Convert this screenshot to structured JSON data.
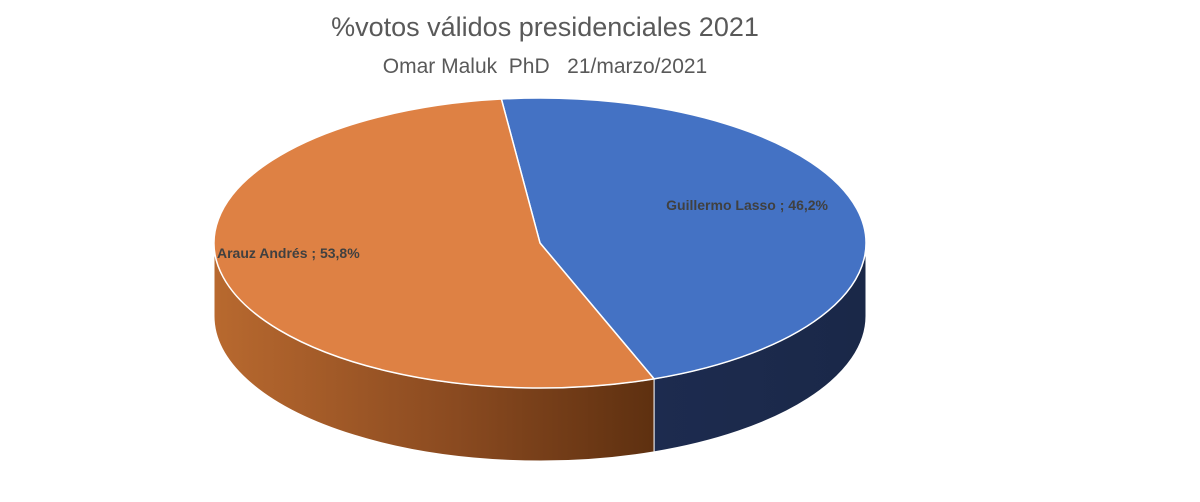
{
  "chart_data": {
    "type": "pie",
    "title": "%votos válidos presidenciales  2021",
    "subtitle": "Omar Maluk  PhD   21/marzo/2021",
    "slices": [
      {
        "name": "Guillermo Lasso",
        "value": 46.2,
        "label": "Guillermo Lasso ; 46,2%",
        "color": "#4472c4",
        "side_color": "#1f2f55"
      },
      {
        "name": "Arauz Andrés",
        "value": 53.8,
        "label": "Arauz Andrés ; 53,8%",
        "color": "#de8144",
        "side_color": "#8a4a20"
      }
    ],
    "style": "3d",
    "legend": "none"
  }
}
